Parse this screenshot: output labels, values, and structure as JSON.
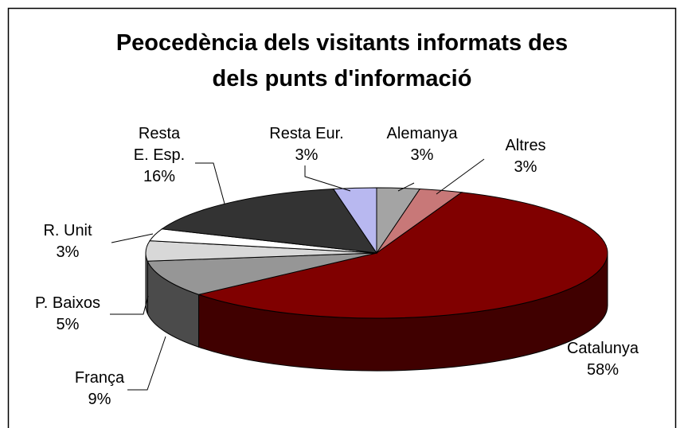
{
  "chart_data": {
    "type": "pie3d",
    "title": "Peocedència dels visitants informats des\ndels punts d'informació",
    "categories": [
      "Alemanya",
      "Altres",
      "Catalunya",
      "França",
      "P. Baixos",
      "R. Unit",
      "Resta\nE. Esp.",
      "Resta Eur."
    ],
    "values": [
      3,
      3,
      58,
      9,
      5,
      3,
      16,
      3
    ],
    "value_labels": [
      "3%",
      "3%",
      "58%",
      "9%",
      "5%",
      "3%",
      "16%",
      "3%"
    ],
    "colors": [
      "#a4a4a4",
      "#c87878",
      "#800000",
      "#969696",
      "#d8d8d8",
      "#ffffff",
      "#333333",
      "#b8b8f0"
    ]
  }
}
